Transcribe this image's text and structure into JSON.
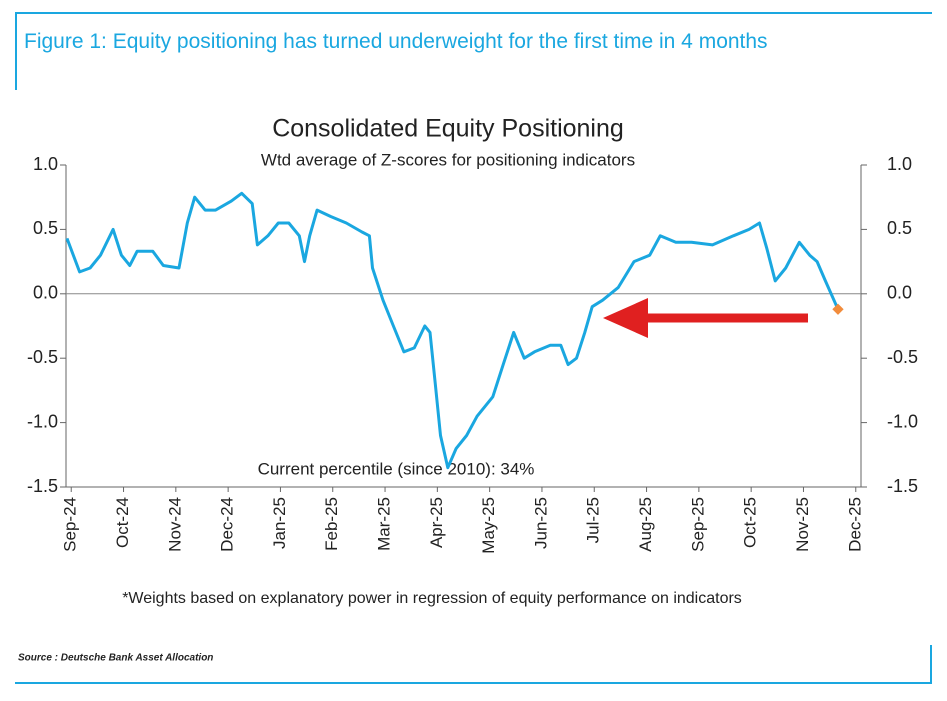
{
  "figure_title": "Figure 1: Equity positioning has turned underweight for the first time in 4 months",
  "source": "Source : Deutsche Bank Asset Allocation",
  "chart_data": {
    "type": "line",
    "title": "Consolidated Equity Positioning",
    "subtitle": "Wtd average of Z-scores for positioning indicators",
    "annotation": "Current percentile (since 2010): 34%",
    "footnote": "*Weights based on explanatory power in regression of equity performance on indicators",
    "xlim": [
      -0.1,
      15.1
    ],
    "xticks": [
      {
        "value": 0,
        "label": "Sep-24"
      },
      {
        "value": 1,
        "label": "Oct-24"
      },
      {
        "value": 2,
        "label": "Nov-24"
      },
      {
        "value": 3,
        "label": "Dec-24"
      },
      {
        "value": 4,
        "label": "Jan-25"
      },
      {
        "value": 5,
        "label": "Feb-25"
      },
      {
        "value": 6,
        "label": "Mar-25"
      },
      {
        "value": 7,
        "label": "Apr-25"
      },
      {
        "value": 8,
        "label": "May-25"
      },
      {
        "value": 9,
        "label": "Jun-25"
      },
      {
        "value": 10,
        "label": "Jul-25"
      },
      {
        "value": 11,
        "label": "Aug-25"
      },
      {
        "value": 12,
        "label": "Sep-25"
      },
      {
        "value": 13,
        "label": "Oct-25"
      },
      {
        "value": 14,
        "label": "Nov-25"
      },
      {
        "value": 15,
        "label": "Dec-25"
      }
    ],
    "ylim": [
      -1.5,
      1.0
    ],
    "yticks": [
      {
        "value": 1.0,
        "label": "1.0"
      },
      0.5,
      {
        "value": 0.0,
        "label": "0.0"
      },
      -0.5,
      {
        "value": -1.0,
        "label": "-1.0"
      },
      -1.5
    ],
    "y2lim": [
      -1.5,
      1.0
    ],
    "y2ticks": [
      {
        "value": 1.0,
        "label": "1.0"
      },
      0.5,
      {
        "value": 0.0,
        "label": "0.0"
      },
      -0.5,
      {
        "value": -1.0,
        "label": "-1.0"
      },
      -1.5
    ],
    "zero_line": true,
    "x": [
      -0.08,
      0.16,
      0.36,
      0.56,
      0.8,
      0.96,
      1.12,
      1.26,
      1.56,
      1.76,
      2.06,
      2.22,
      2.36,
      2.56,
      2.76,
      3.06,
      3.26,
      3.46,
      3.56,
      3.76,
      3.96,
      4.16,
      4.36,
      4.46,
      4.56,
      4.7,
      4.96,
      5.26,
      5.56,
      5.7,
      5.76,
      5.96,
      6.16,
      6.36,
      6.56,
      6.76,
      6.86,
      6.96,
      7.06,
      7.2,
      7.36,
      7.56,
      7.76,
      8.06,
      8.26,
      8.46,
      8.66,
      8.86,
      9.16,
      9.36,
      9.5,
      9.66,
      9.82,
      9.96,
      10.16,
      10.46,
      10.76,
      11.06,
      11.26,
      11.56,
      11.86,
      12.26,
      12.66,
      12.96,
      13.16,
      13.3,
      13.46,
      13.66,
      13.92,
      14.12,
      14.26,
      14.42,
      14.66
    ],
    "series": [
      {
        "name": "Consolidated Equity Positioning",
        "color": "#1aa7e0",
        "last_point_color": "#f28c3c",
        "values": [
          0.43,
          0.17,
          0.2,
          0.3,
          0.5,
          0.3,
          0.22,
          0.33,
          0.33,
          0.22,
          0.2,
          0.55,
          0.75,
          0.65,
          0.65,
          0.72,
          0.78,
          0.7,
          0.38,
          0.45,
          0.55,
          0.55,
          0.45,
          0.25,
          0.45,
          0.65,
          0.6,
          0.55,
          0.48,
          0.45,
          0.2,
          -0.05,
          -0.25,
          -0.45,
          -0.42,
          -0.25,
          -0.3,
          -0.7,
          -1.1,
          -1.35,
          -1.2,
          -1.1,
          -0.95,
          -0.8,
          -0.55,
          -0.3,
          -0.5,
          -0.45,
          -0.4,
          -0.4,
          -0.55,
          -0.5,
          -0.3,
          -0.1,
          -0.05,
          0.05,
          0.25,
          0.3,
          0.45,
          0.4,
          0.4,
          0.38,
          0.45,
          0.5,
          0.55,
          0.35,
          0.1,
          0.2,
          0.4,
          0.3,
          0.25,
          0.1,
          -0.12
        ]
      }
    ]
  }
}
